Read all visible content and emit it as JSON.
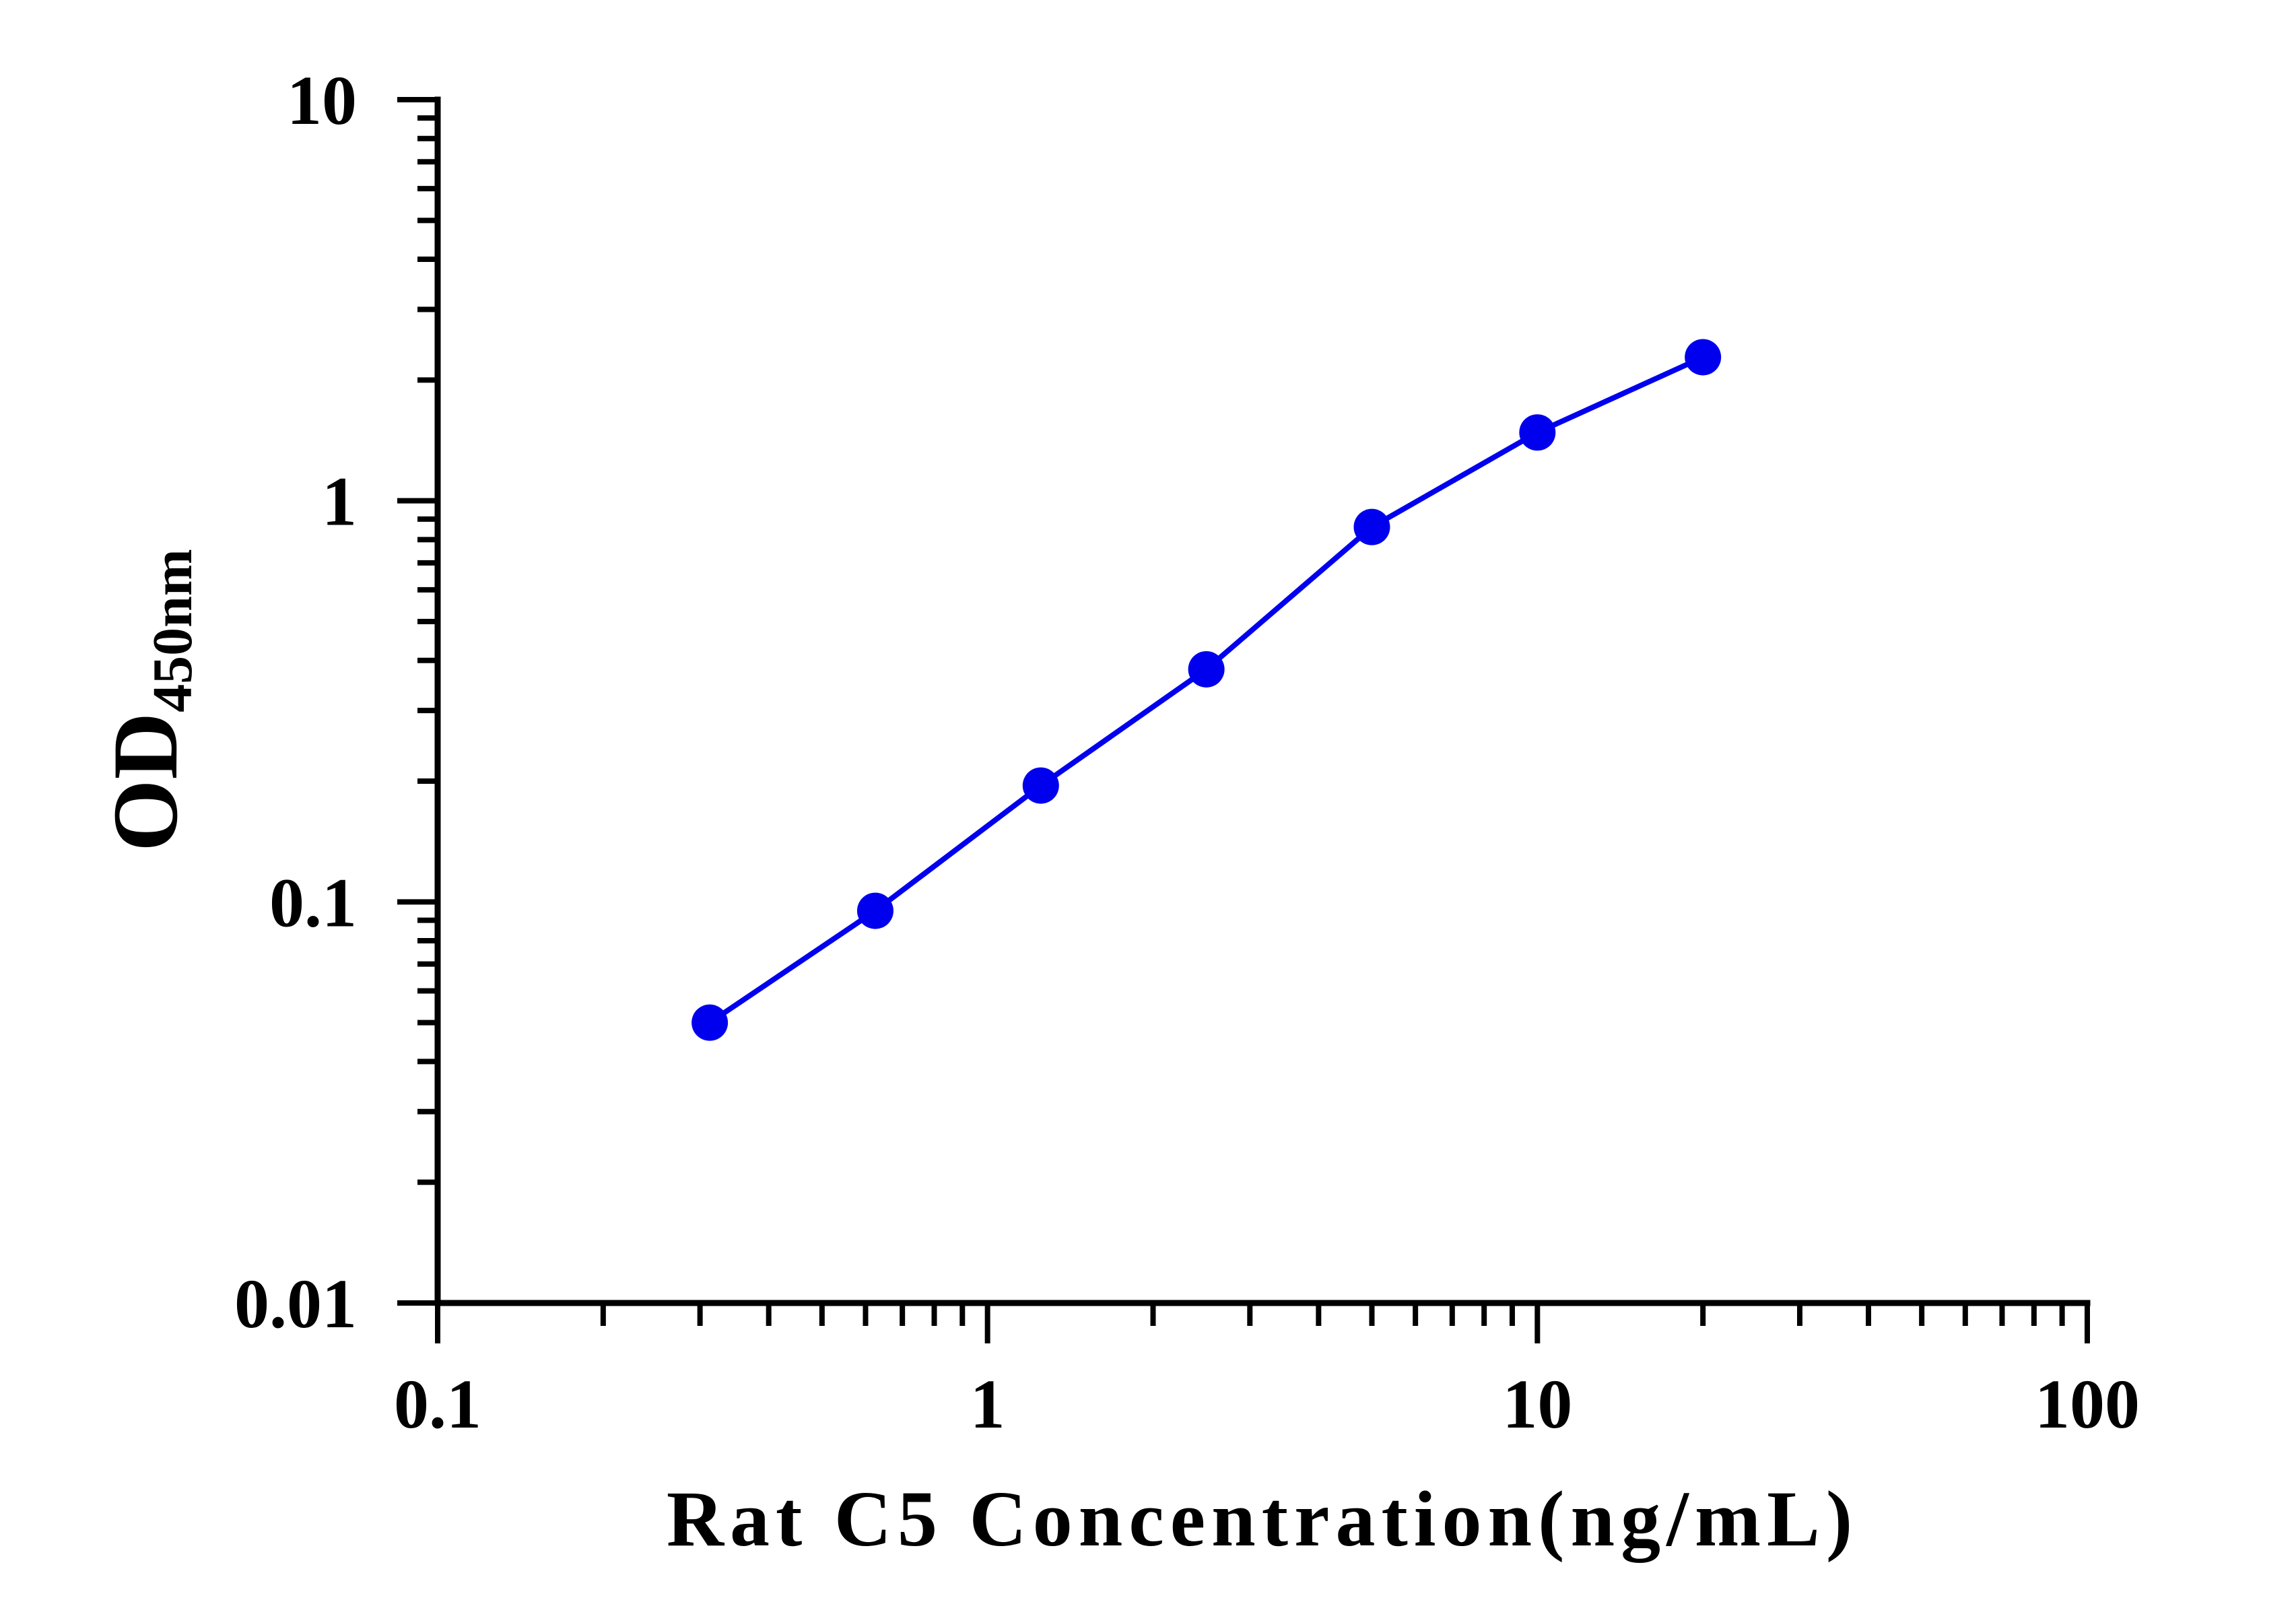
{
  "chart_data": {
    "type": "line",
    "xlabel": "Rat C5 Concentration(ng/mL)",
    "ylabel_main": "OD",
    "ylabel_sub": "450nm",
    "x_scale": "log",
    "y_scale": "log",
    "xlim": [
      0.1,
      100
    ],
    "ylim": [
      0.01,
      10
    ],
    "x_ticks": [
      0.1,
      1,
      10,
      100
    ],
    "x_tick_labels": [
      "0.1",
      "1",
      "10",
      "100"
    ],
    "y_ticks": [
      0.01,
      0.1,
      1,
      10
    ],
    "y_tick_labels": [
      "0.01",
      "0.1",
      "1",
      "10"
    ],
    "grid": false,
    "legend": "none",
    "series": [
      {
        "color": "#0000ee",
        "marker": "circle",
        "x": [
          0.3125,
          0.625,
          1.25,
          2.5,
          5,
          10,
          20
        ],
        "y": [
          0.05,
          0.095,
          0.195,
          0.38,
          0.86,
          1.48,
          2.28
        ]
      }
    ]
  }
}
